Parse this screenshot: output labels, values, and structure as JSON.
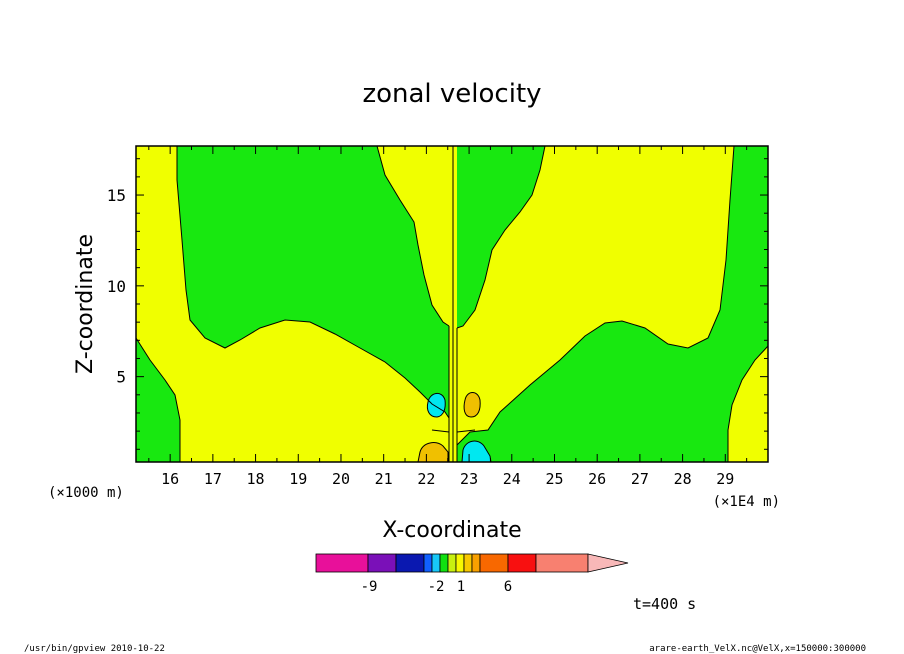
{
  "chart_data": {
    "type": "heatmap",
    "title": "zonal velocity",
    "xlabel": "X-coordinate",
    "ylabel": "Z-coordinate",
    "x_unit_left": "(×1000 m)",
    "x_unit_right": "(×1E4 m)",
    "xlim": [
      15.2,
      30.0
    ],
    "ylim": [
      0.3,
      17.7
    ],
    "x_ticks": [
      16,
      17,
      18,
      19,
      20,
      21,
      22,
      23,
      24,
      25,
      26,
      27,
      28,
      29
    ],
    "y_ticks": [
      5,
      10,
      15
    ],
    "time_label": "t=400 s",
    "colorbar": {
      "labels": [
        "-9",
        "-2",
        "1",
        "6"
      ],
      "colors": [
        "#e8109a",
        "#7a10b8",
        "#0a18b0",
        "#1060ff",
        "#18c8f8",
        "#10e010",
        "#c8f010",
        "#f8f800",
        "#f8c800",
        "#f8a000",
        "#f86800",
        "#f81010",
        "#f88070",
        "#f8b8b8"
      ]
    },
    "regions": {
      "negative_color": "#18e810",
      "positive_color": "#f0ff00",
      "strong_negative_color": "#00e8f0",
      "strong_positive_color": "#f0c000"
    },
    "footer_left": "/usr/bin/gpview   2010-10-22",
    "footer_right": "arare-earth_VelX.nc@VelX,x=150000:300000"
  }
}
